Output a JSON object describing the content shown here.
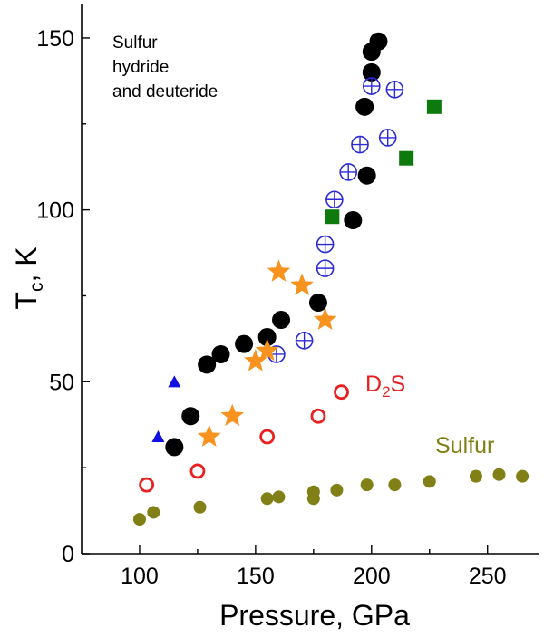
{
  "chart_data": {
    "type": "scatter",
    "title": "",
    "xlabel": "Pressure, GPa",
    "ylabel_main": "T",
    "ylabel_sub": "c",
    "ylabel_rest": ", K",
    "xlim": [
      75,
      272
    ],
    "ylim": [
      0,
      160
    ],
    "x_ticks_major": [
      100,
      150,
      200,
      250
    ],
    "x_ticks_minor": [
      125,
      175,
      225
    ],
    "y_ticks_major": [
      0,
      50,
      100,
      150
    ],
    "y_ticks_minor": [
      25,
      75,
      125
    ],
    "grid": false,
    "annotations": {
      "sh_line1": "Sulfur",
      "sh_line2": "hydride",
      "sh_line3": "and deuteride",
      "d2s_main": "D",
      "d2s_sub": "2",
      "d2s_rest": "S",
      "sulfur": "Sulfur"
    },
    "series": [
      {
        "name": "H2S (black circles)",
        "marker": "filled-circle",
        "color": "#000000",
        "points": [
          [
            115,
            31
          ],
          [
            122,
            40
          ],
          [
            129,
            55
          ],
          [
            135,
            58
          ],
          [
            145,
            61
          ],
          [
            155,
            63
          ],
          [
            161,
            68
          ],
          [
            177,
            73
          ],
          [
            192,
            97
          ],
          [
            198,
            110
          ],
          [
            197,
            130
          ],
          [
            200,
            140
          ],
          [
            200,
            146
          ],
          [
            203,
            149
          ]
        ]
      },
      {
        "name": "H2S (crossed open circles)",
        "marker": "crossed-circle",
        "color": "#2b2bd6",
        "points": [
          [
            159,
            58
          ],
          [
            171,
            62
          ],
          [
            180,
            83
          ],
          [
            180,
            90
          ],
          [
            184,
            103
          ],
          [
            190,
            111
          ],
          [
            195,
            119
          ],
          [
            207,
            121
          ],
          [
            200,
            136
          ],
          [
            210,
            135
          ]
        ]
      },
      {
        "name": "H2S (green squares)",
        "marker": "filled-square",
        "color": "#0e7a0e",
        "points": [
          [
            183,
            98
          ],
          [
            215,
            115
          ],
          [
            227,
            130
          ]
        ]
      },
      {
        "name": "H2S (orange stars)",
        "marker": "star",
        "color": "#f7931e",
        "points": [
          [
            130,
            34
          ],
          [
            140,
            40
          ],
          [
            150,
            56
          ],
          [
            155,
            59
          ],
          [
            160,
            82
          ],
          [
            170,
            78
          ],
          [
            180,
            68
          ]
        ]
      },
      {
        "name": "H2S (blue triangles)",
        "marker": "filled-triangle",
        "color": "#1010e0",
        "points": [
          [
            108,
            34
          ],
          [
            115,
            50
          ]
        ]
      },
      {
        "name": "D2S",
        "marker": "open-circle",
        "color": "#e82020",
        "points": [
          [
            103,
            20
          ],
          [
            125,
            24
          ],
          [
            155,
            34
          ],
          [
            177,
            40
          ],
          [
            187,
            47
          ]
        ]
      },
      {
        "name": "Sulfur",
        "marker": "small-filled-circle",
        "color": "#808016",
        "points": [
          [
            100,
            10
          ],
          [
            106,
            12
          ],
          [
            126,
            13.5
          ],
          [
            155,
            16
          ],
          [
            160,
            16.5
          ],
          [
            175,
            16
          ],
          [
            175,
            18
          ],
          [
            185,
            18.5
          ],
          [
            198,
            20
          ],
          [
            210,
            20
          ],
          [
            225,
            21
          ],
          [
            245,
            22.5
          ],
          [
            255,
            23
          ],
          [
            265,
            22.5
          ]
        ]
      }
    ]
  }
}
